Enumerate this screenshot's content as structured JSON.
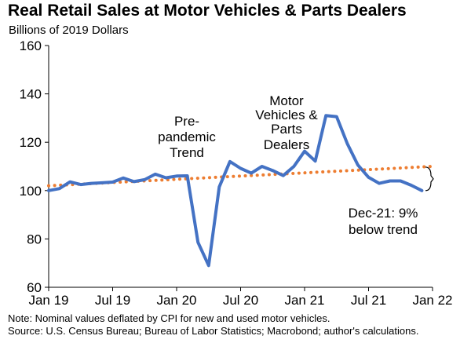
{
  "title": "Real Retail Sales at Motor Vehicles & Parts Dealers",
  "subtitle": "Billions of 2019 Dollars",
  "notes": [
    "Note: Nominal values deflated by CPI for new and used motor vehicles.",
    "Source: U.S. Census Bureau; Bureau of Labor Statistics; Macrobond; author's calculations."
  ],
  "colors": {
    "actual": "#4472C4",
    "trend": "#ED7D31",
    "axis": "#000000"
  },
  "chart_data": {
    "type": "line",
    "title": "Real Retail Sales at Motor Vehicles & Parts Dealers",
    "ylabel": "Billions of 2019 Dollars",
    "xlabel": "",
    "ylim": [
      60,
      160
    ],
    "yticks": [
      60,
      80,
      100,
      120,
      140,
      160
    ],
    "xlim": [
      "2019-01",
      "2022-01"
    ],
    "xticks": [
      "Jan 19",
      "Jul 19",
      "Jan 20",
      "Jul 20",
      "Jan 21",
      "Jul 21",
      "Jan 22"
    ],
    "grid": false,
    "series": [
      {
        "name": "Motor Vehicles & Parts Dealers",
        "label_lines": [
          "Motor",
          "Vehicles &",
          "Parts",
          "Dealers"
        ],
        "style": "solid",
        "x": [
          "2019-01",
          "2019-02",
          "2019-03",
          "2019-04",
          "2019-05",
          "2019-06",
          "2019-07",
          "2019-08",
          "2019-09",
          "2019-10",
          "2019-11",
          "2019-12",
          "2020-01",
          "2020-02",
          "2020-03",
          "2020-04",
          "2020-05",
          "2020-06",
          "2020-07",
          "2020-08",
          "2020-09",
          "2020-10",
          "2020-11",
          "2020-12",
          "2021-01",
          "2021-02",
          "2021-03",
          "2021-04",
          "2021-05",
          "2021-06",
          "2021-07",
          "2021-08",
          "2021-09",
          "2021-10",
          "2021-11",
          "2021-12"
        ],
        "y": [
          100,
          100.8,
          103.6,
          102.5,
          103,
          103.2,
          103.5,
          105.2,
          103.7,
          104.5,
          106.8,
          105.3,
          106,
          106.1,
          78.6,
          69,
          101.5,
          112,
          109.2,
          107.2,
          110,
          108.3,
          106.2,
          110,
          116.3,
          112.2,
          131,
          130.6,
          119.5,
          110.6,
          105.5,
          103,
          104,
          104,
          102.2,
          100
        ]
      },
      {
        "name": "Pre-pandemic Trend",
        "label_lines": [
          "Pre-",
          "pandemic",
          "Trend"
        ],
        "style": "dotted",
        "x": [
          "2019-01",
          "2022-01"
        ],
        "y": [
          102,
          110
        ]
      }
    ],
    "annotations": [
      {
        "text_lines": [
          "Dec-21: 9%",
          "below trend"
        ],
        "x": "2021-12",
        "y_from": 100,
        "y_to": 109.7
      }
    ]
  }
}
